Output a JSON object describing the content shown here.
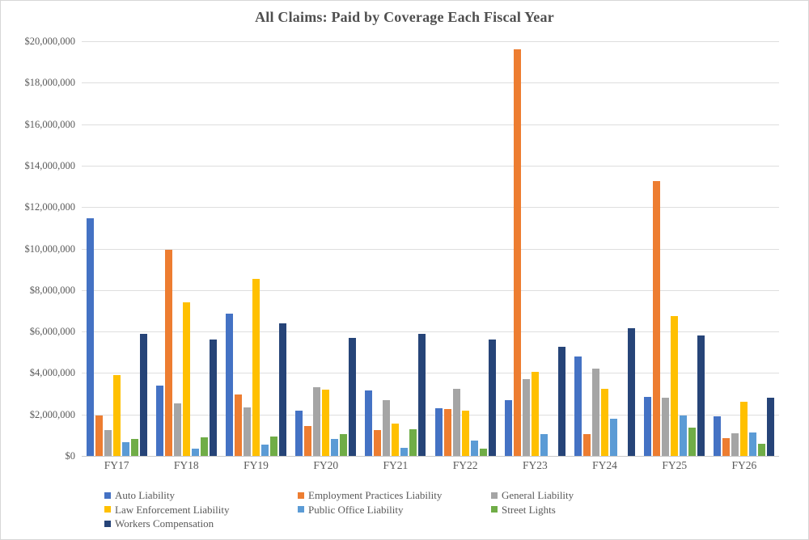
{
  "title": "All Claims: Paid by Coverage Each Fiscal Year",
  "chart_data": {
    "type": "bar",
    "title": "All Claims: Paid by Coverage Each Fiscal Year",
    "xlabel": "",
    "ylabel": "",
    "grid": true,
    "legend_position": "bottom",
    "categories": [
      "FY17",
      "FY18",
      "FY19",
      "FY20",
      "FY21",
      "FY22",
      "FY23",
      "FY24",
      "FY25",
      "FY26"
    ],
    "y_axis": {
      "min": 0,
      "max": 20000000,
      "step": 2000000,
      "tick_labels_top_to_bottom": [
        "$20,000,000",
        "$18,000,000",
        "$16,000,000",
        "$14,000,000",
        "$12,000,000",
        "$10,000,000",
        "$8,000,000",
        "$6,000,000",
        "$4,000,000",
        "$2,000,000",
        "$0"
      ]
    },
    "series": [
      {
        "name": "Auto Liability",
        "color": "#4472C4",
        "values": [
          11450000,
          3400000,
          6850000,
          2200000,
          3150000,
          2300000,
          2700000,
          4800000,
          2850000,
          1900000
        ]
      },
      {
        "name": "Employment Practices Liability",
        "color": "#ED7D31",
        "values": [
          1950000,
          9950000,
          2950000,
          1450000,
          1250000,
          2250000,
          19600000,
          1050000,
          13250000,
          850000
        ]
      },
      {
        "name": "General Liability",
        "color": "#A5A5A5",
        "values": [
          1250000,
          2550000,
          2350000,
          3300000,
          2700000,
          3250000,
          3700000,
          4200000,
          2800000,
          1100000
        ]
      },
      {
        "name": "Law Enforcement Liability",
        "color": "#FFC000",
        "values": [
          3900000,
          7400000,
          8550000,
          3200000,
          1550000,
          2200000,
          4050000,
          3250000,
          6750000,
          2600000
        ]
      },
      {
        "name": "Public Office Liability",
        "color": "#5B9BD5",
        "values": [
          650000,
          350000,
          550000,
          800000,
          400000,
          750000,
          1050000,
          1800000,
          1950000,
          1150000
        ]
      },
      {
        "name": "Street Lights",
        "color": "#70AD47",
        "values": [
          800000,
          900000,
          950000,
          1050000,
          1300000,
          350000,
          0,
          0,
          1350000,
          600000
        ]
      },
      {
        "name": "Workers Compensation",
        "color": "#264478",
        "values": [
          5900000,
          5600000,
          6400000,
          5700000,
          5900000,
          5600000,
          5250000,
          6150000,
          5800000,
          2800000
        ]
      }
    ]
  }
}
